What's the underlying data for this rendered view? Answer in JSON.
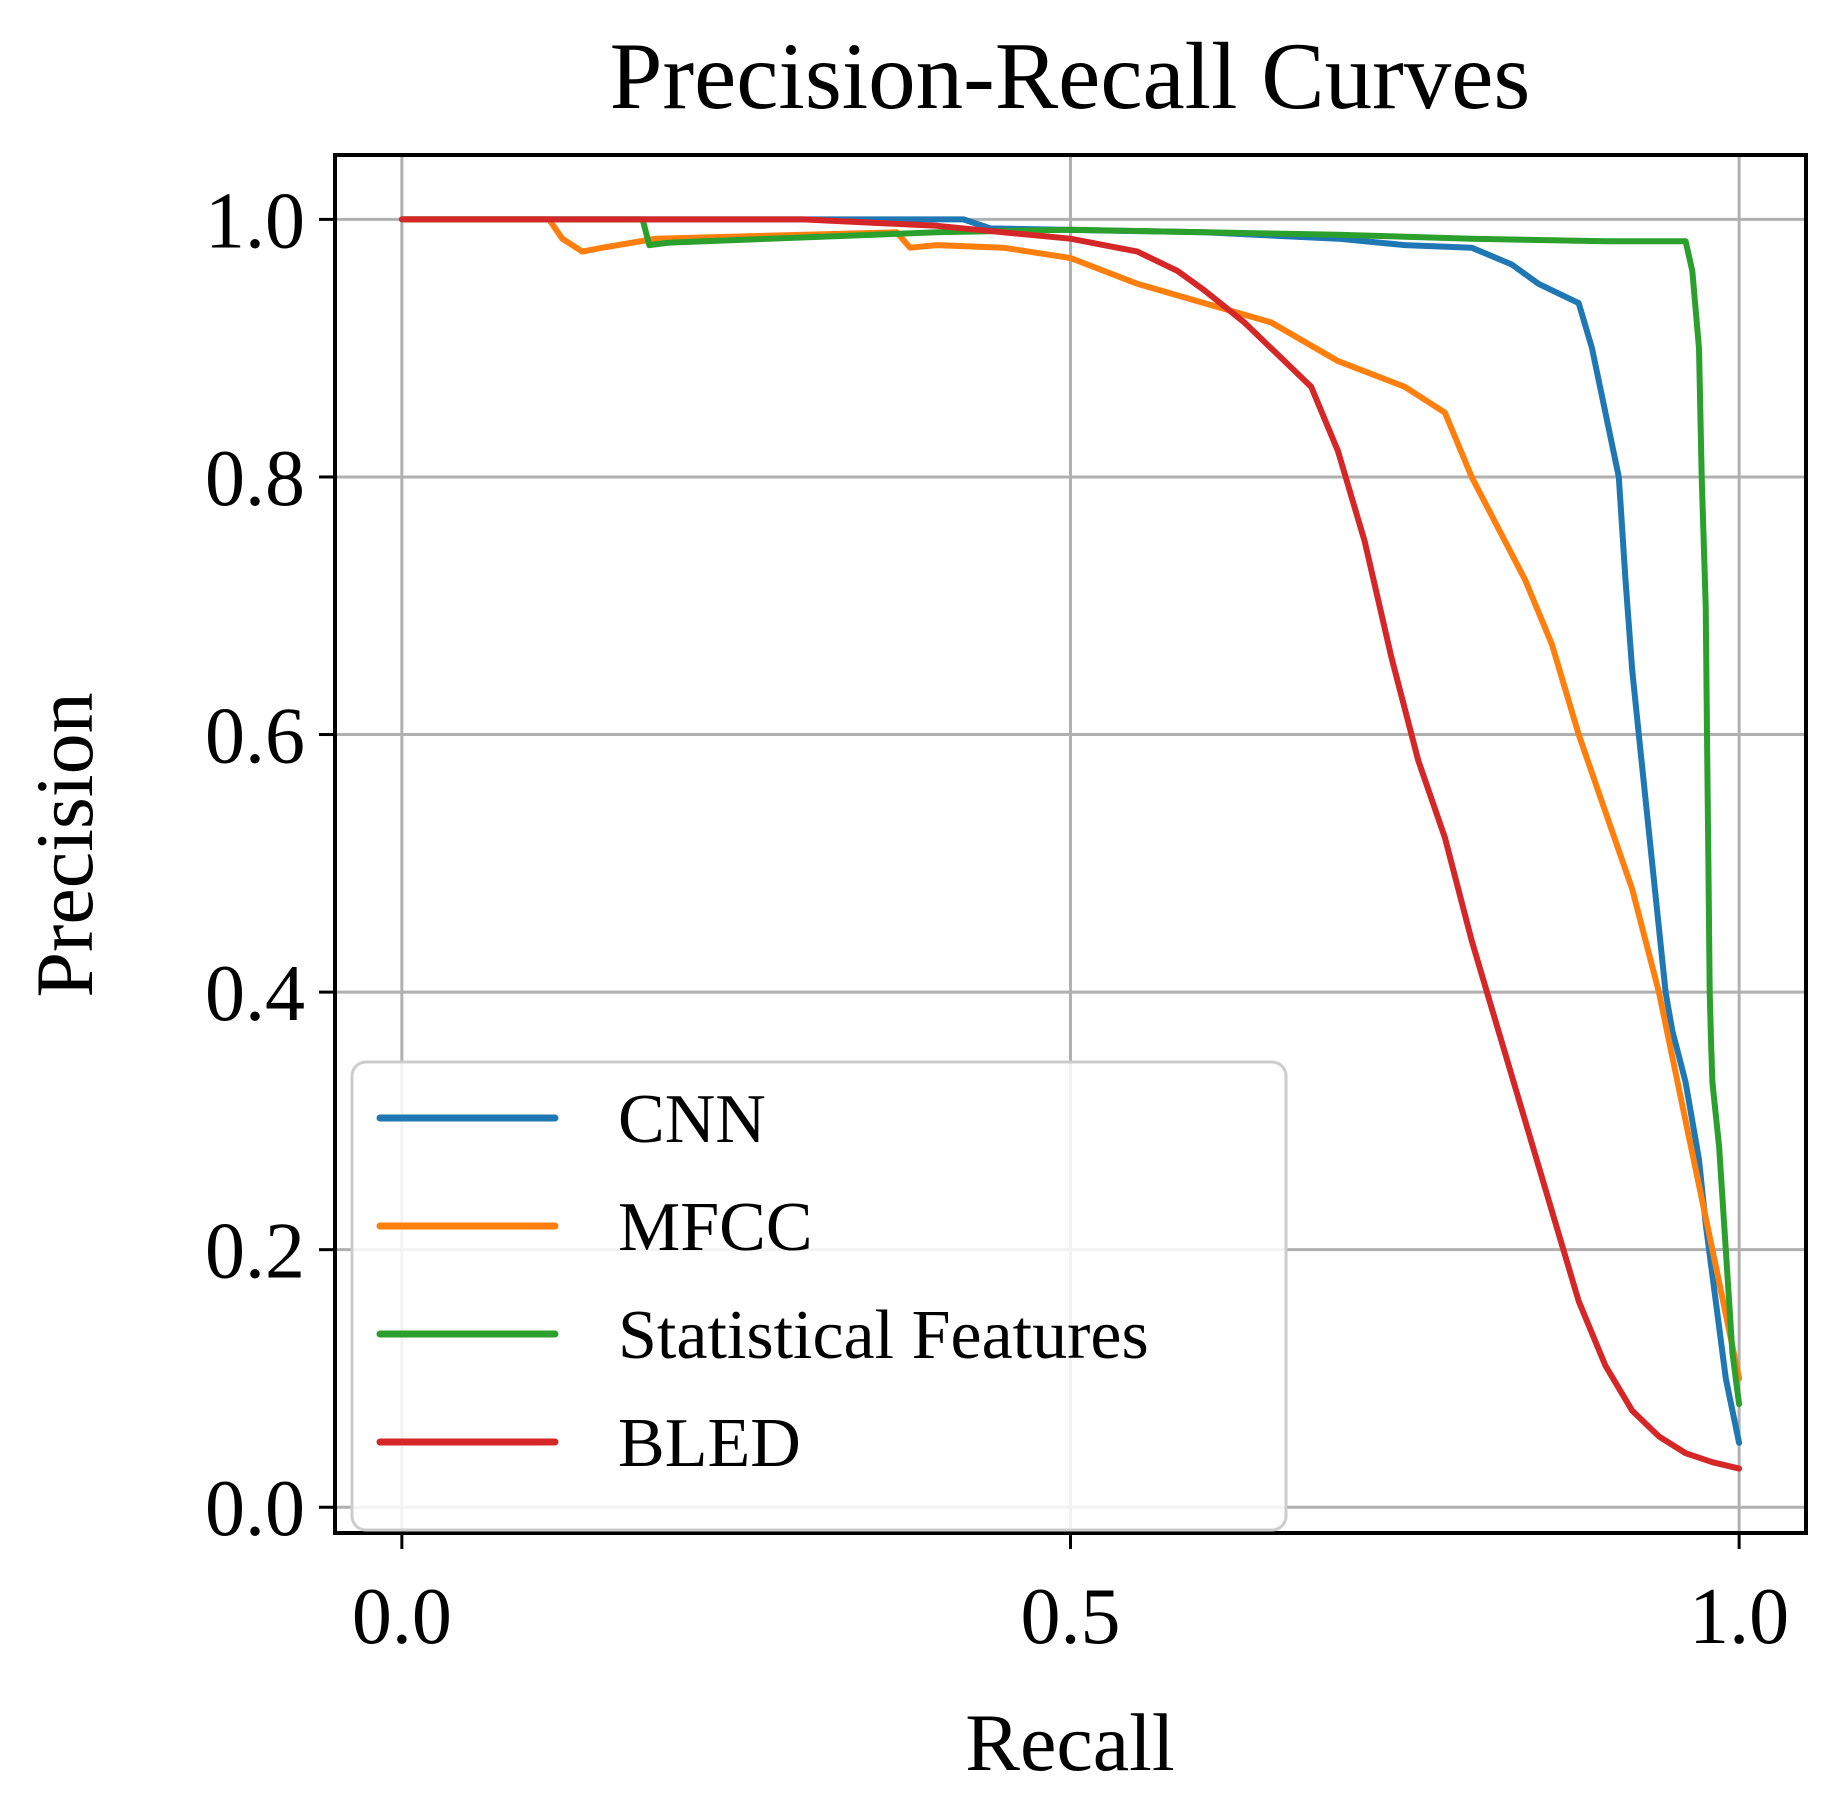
{
  "chart_data": {
    "type": "line",
    "title": "Precision-Recall Curves",
    "xlabel": "Recall",
    "ylabel": "Precision",
    "xlim": [
      -0.05,
      1.05
    ],
    "ylim": [
      -0.02,
      1.05
    ],
    "grid": true,
    "legend_position": "lower-left",
    "xticks": [
      0.0,
      0.5,
      1.0
    ],
    "xtick_labels": [
      "0.0",
      "0.5",
      "1.0"
    ],
    "yticks": [
      0.0,
      0.2,
      0.4,
      0.6,
      0.8,
      1.0
    ],
    "ytick_labels": [
      "0.0",
      "0.2",
      "0.4",
      "0.6",
      "0.8",
      "1.0"
    ],
    "series": [
      {
        "name": "CNN",
        "color": "#1f77b4",
        "x": [
          0.0,
          0.2,
          0.42,
          0.44,
          0.6,
          0.7,
          0.75,
          0.8,
          0.83,
          0.85,
          0.87,
          0.88,
          0.89,
          0.9,
          0.91,
          0.915,
          0.92,
          0.925,
          0.93,
          0.935,
          0.94,
          0.945,
          0.95,
          0.955,
          0.96,
          0.965,
          0.97,
          0.975,
          0.98,
          0.99,
          1.0
        ],
        "y": [
          1.0,
          1.0,
          1.0,
          0.993,
          0.99,
          0.985,
          0.98,
          0.978,
          0.965,
          0.95,
          0.94,
          0.935,
          0.9,
          0.85,
          0.8,
          0.72,
          0.65,
          0.6,
          0.55,
          0.5,
          0.45,
          0.4,
          0.37,
          0.35,
          0.33,
          0.3,
          0.27,
          0.22,
          0.18,
          0.1,
          0.05
        ]
      },
      {
        "name": "MFCC",
        "color": "#ff7f0e",
        "x": [
          0.0,
          0.11,
          0.12,
          0.135,
          0.15,
          0.19,
          0.37,
          0.38,
          0.4,
          0.45,
          0.5,
          0.55,
          0.6,
          0.65,
          0.7,
          0.75,
          0.78,
          0.8,
          0.82,
          0.84,
          0.86,
          0.88,
          0.9,
          0.92,
          0.94,
          0.96,
          0.98,
          1.0
        ],
        "y": [
          1.0,
          1.0,
          0.985,
          0.975,
          0.978,
          0.985,
          0.99,
          0.978,
          0.98,
          0.978,
          0.97,
          0.95,
          0.935,
          0.92,
          0.89,
          0.87,
          0.85,
          0.8,
          0.76,
          0.72,
          0.67,
          0.6,
          0.54,
          0.48,
          0.4,
          0.3,
          0.2,
          0.1
        ]
      },
      {
        "name": "Statistical Features",
        "color": "#2ca02c",
        "x": [
          0.0,
          0.18,
          0.185,
          0.2,
          0.4,
          0.5,
          0.6,
          0.7,
          0.8,
          0.9,
          0.96,
          0.965,
          0.97,
          0.972,
          0.975,
          0.976,
          0.977,
          0.978,
          0.979,
          0.98,
          0.985,
          0.99,
          0.995,
          1.0
        ],
        "y": [
          1.0,
          1.0,
          0.98,
          0.982,
          0.99,
          0.992,
          0.99,
          0.988,
          0.985,
          0.983,
          0.983,
          0.96,
          0.9,
          0.8,
          0.7,
          0.6,
          0.5,
          0.4,
          0.36,
          0.33,
          0.28,
          0.2,
          0.12,
          0.08
        ]
      },
      {
        "name": "BLED",
        "color": "#d62728",
        "x": [
          0.0,
          0.3,
          0.4,
          0.45,
          0.5,
          0.55,
          0.58,
          0.6,
          0.63,
          0.65,
          0.68,
          0.7,
          0.72,
          0.74,
          0.76,
          0.78,
          0.8,
          0.82,
          0.84,
          0.86,
          0.88,
          0.9,
          0.92,
          0.94,
          0.96,
          0.98,
          1.0
        ],
        "y": [
          1.0,
          1.0,
          0.995,
          0.99,
          0.985,
          0.975,
          0.96,
          0.945,
          0.92,
          0.9,
          0.87,
          0.82,
          0.75,
          0.66,
          0.58,
          0.52,
          0.44,
          0.37,
          0.3,
          0.23,
          0.16,
          0.11,
          0.075,
          0.055,
          0.042,
          0.035,
          0.03
        ]
      }
    ]
  }
}
